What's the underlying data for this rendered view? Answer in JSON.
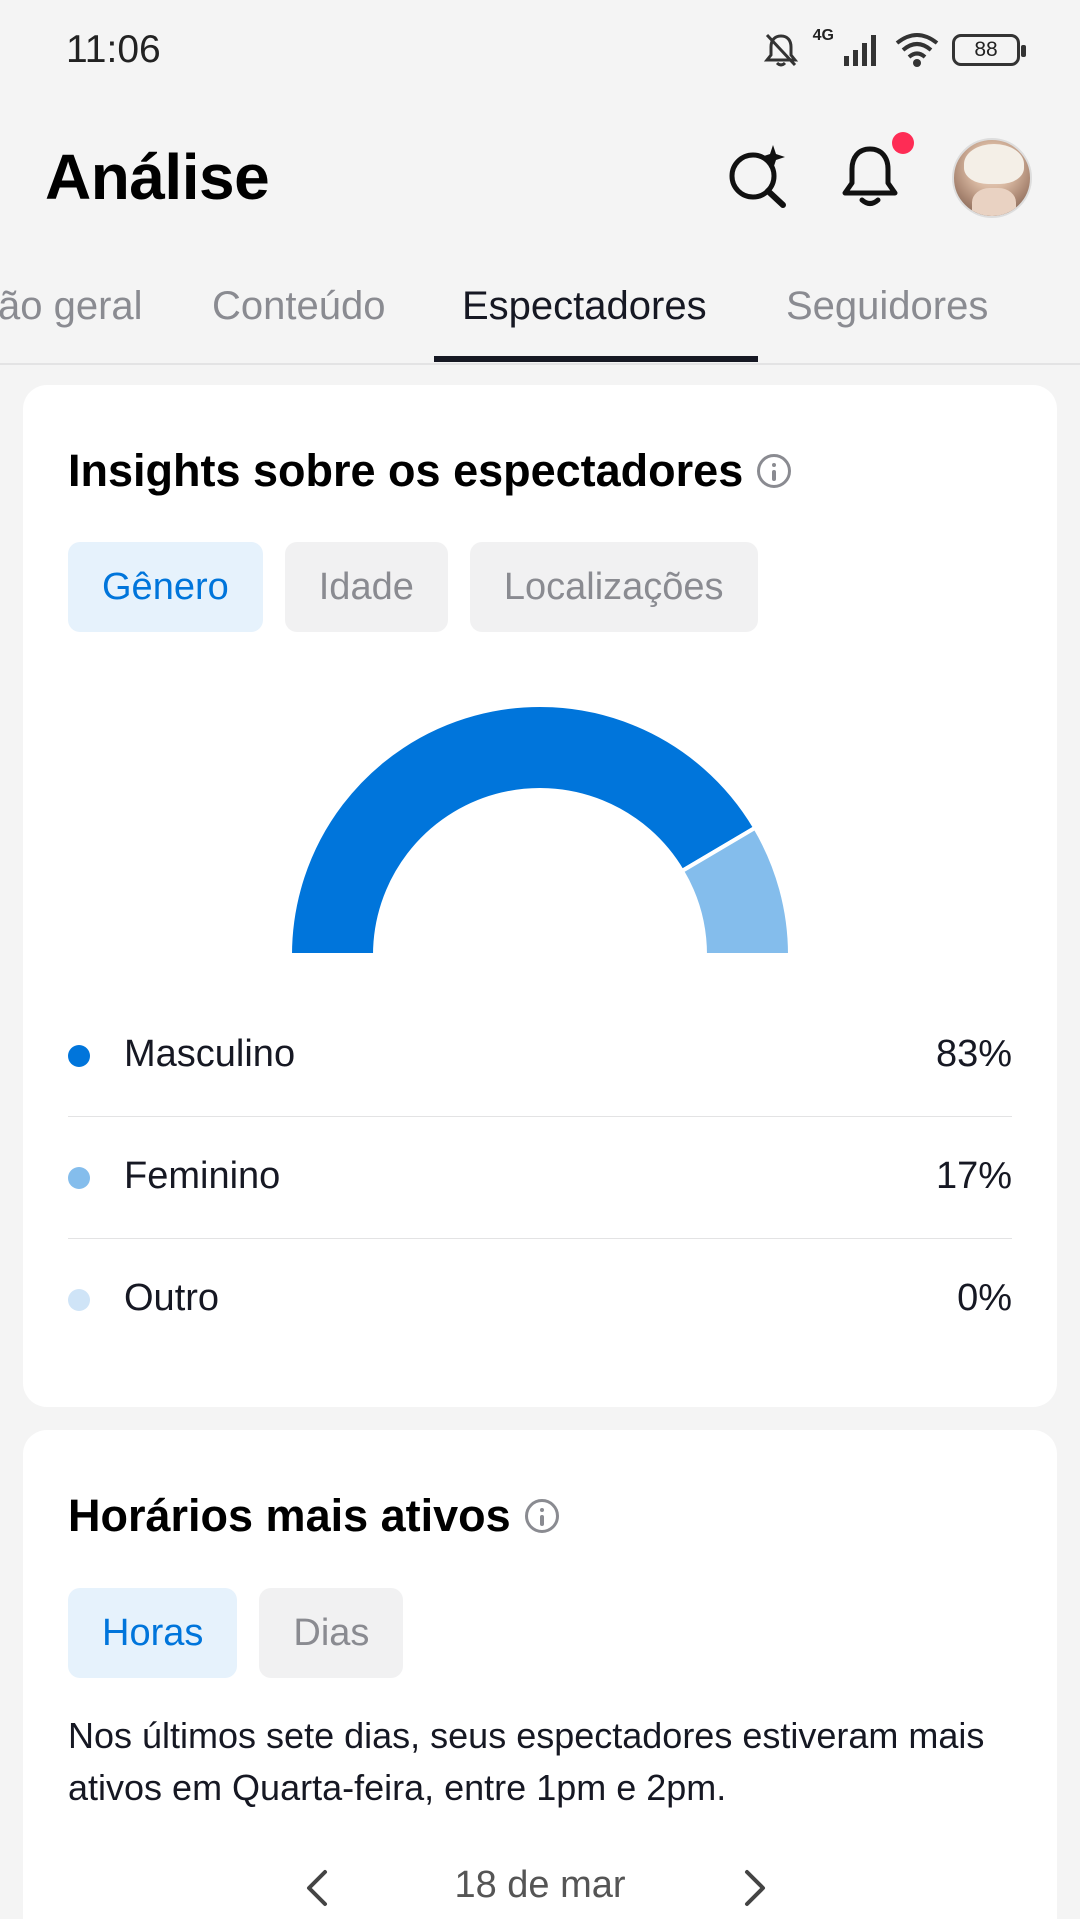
{
  "status_bar": {
    "time": "11:06",
    "network": "4G",
    "battery": "88",
    "icons": [
      "mute-bell-icon",
      "signal-icon",
      "wifi-icon",
      "battery-icon"
    ]
  },
  "header": {
    "title": "Análise",
    "icons": [
      "ai-search-icon",
      "bell-icon",
      "avatar"
    ],
    "notification_dot_color": "#fe2c55"
  },
  "tabs": [
    {
      "label": "ão geral",
      "active": false
    },
    {
      "label": "Conteúdo",
      "active": false
    },
    {
      "label": "Espectadores",
      "active": true
    },
    {
      "label": "Seguidores",
      "active": false
    }
  ],
  "viewer_insights": {
    "title": "Insights sobre os espectadores",
    "chips": [
      {
        "label": "Gênero",
        "active": true
      },
      {
        "label": "Idade",
        "active": false
      },
      {
        "label": "Localizações",
        "active": false
      }
    ],
    "legend": [
      {
        "label": "Masculino",
        "value": "83%",
        "color": "#0075db"
      },
      {
        "label": "Feminino",
        "value": "17%",
        "color": "#84bdec"
      },
      {
        "label": "Outro",
        "value": "0%",
        "color": "#cfe4f7"
      }
    ]
  },
  "chart_data": {
    "type": "pie",
    "style": "half-donut",
    "categories": [
      "Masculino",
      "Feminino",
      "Outro"
    ],
    "values": [
      83,
      17,
      0
    ],
    "colors": [
      "#0075db",
      "#84bdec",
      "#cfe4f7"
    ]
  },
  "active_times": {
    "title": "Horários mais ativos",
    "chips": [
      {
        "label": "Horas",
        "active": true
      },
      {
        "label": "Dias",
        "active": false
      }
    ],
    "summary": "Nos últimos sete dias, seus espectadores estiveram mais ativos em Quarta-feira, entre 1pm e 2pm.",
    "date": "18 de mar"
  },
  "colors": {
    "accent": "#0075db",
    "accent_bg": "#e6f2fc",
    "text": "#161823",
    "muted": "#8a8b91",
    "background": "#f4f4f4"
  }
}
